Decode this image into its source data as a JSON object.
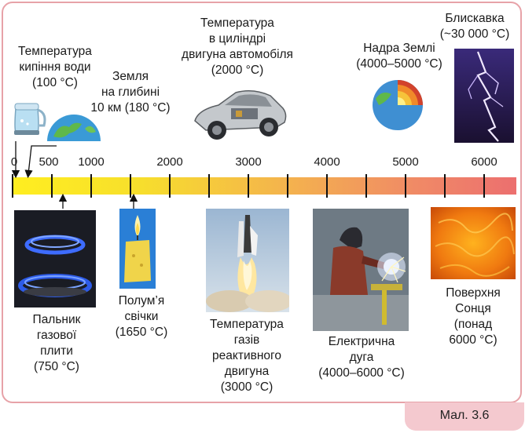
{
  "caption": "Мал. 3.6",
  "scale": {
    "ticks": [
      {
        "label": "0",
        "value": 0
      },
      {
        "label": "500",
        "value": 500
      },
      {
        "label": "1000",
        "value": 1000
      },
      {
        "label": "2000",
        "value": 2000
      },
      {
        "label": "3000",
        "value": 3000
      },
      {
        "label": "4000",
        "value": 4000
      },
      {
        "label": "5000",
        "value": 5000
      },
      {
        "label": "6000",
        "value": 6000
      }
    ],
    "unit": "°C"
  },
  "top_items": {
    "water": {
      "line1": "Температура",
      "line2": "кипіння води",
      "line3": "(100 °C)",
      "icon": "kettle-icon"
    },
    "earth10": {
      "line1": "Земля",
      "line2": "на глибині",
      "line3": "10 км (180 °C)",
      "icon": "globe-icon"
    },
    "engine": {
      "line1": "Температура",
      "line2": "в циліндрі",
      "line3": "двигуна автомобіля",
      "line4": "(2000 °C)",
      "icon": "car-icon"
    },
    "core": {
      "line1": "Надра Землі",
      "line2": "(4000–5000 °C)",
      "icon": "earth-core-icon"
    },
    "lightning": {
      "line1": "Блискавка",
      "line2": "(~30 000 °C)",
      "icon": "lightning-icon"
    }
  },
  "bottom_items": {
    "burner": {
      "line1": "Пальник",
      "line2": "газової",
      "line3": "плити",
      "line4": "(750 °C)",
      "icon": "gas-burner-icon"
    },
    "candle": {
      "line1": "Полум’я",
      "line2": "свічки",
      "line3": "(1650 °C)",
      "icon": "candle-icon"
    },
    "jet": {
      "line1": "Температура",
      "line2": "газів",
      "line3": "реактивного",
      "line4": "двигуна",
      "line5": "(3000 °C)",
      "icon": "rocket-launch-icon"
    },
    "arc": {
      "line1": "Електрична",
      "line2": "дуга",
      "line3": "(4000–6000 °C)",
      "icon": "welder-icon"
    },
    "sun": {
      "line1": "Поверхня",
      "line2": "Сонця",
      "line3": "(понад",
      "line4": "6000 °C)",
      "icon": "sun-surface-icon"
    }
  },
  "colors": {
    "frame": "#e7a2a8",
    "caption_bg": "#f4c9cf",
    "scale_start": "#ffee20",
    "scale_end": "#ec6f6f"
  }
}
